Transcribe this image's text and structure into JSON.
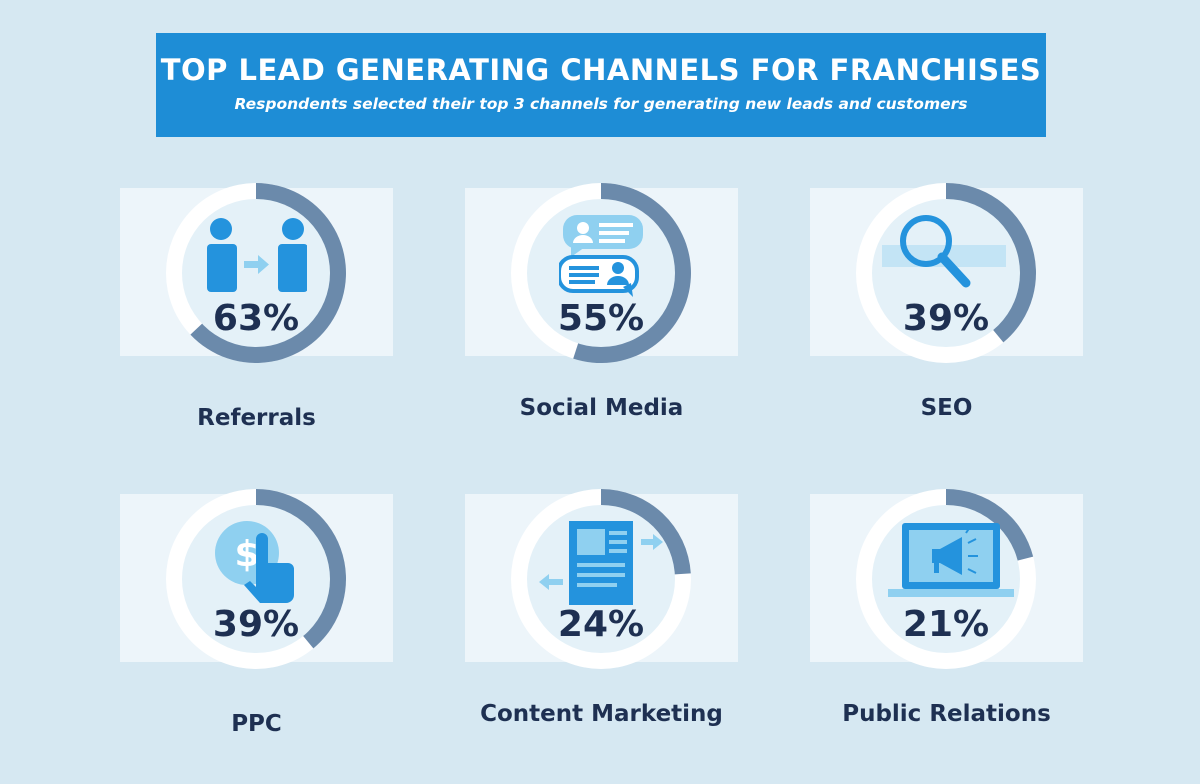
{
  "header": {
    "title": "TOP LEAD GENERATING CHANNELS FOR FRANCHISES",
    "subtitle": "Respondents selected their top 3 channels for generating new leads and customers"
  },
  "colors": {
    "background": "#d6e8f2",
    "banner": "#1e8dd6",
    "ring_track": "#ffffff",
    "ring_fill": "#6b8aab",
    "text_dark": "#1e3052",
    "icon_blue": "#2493dd",
    "icon_light": "#8fd0f0"
  },
  "chart_data": {
    "type": "donut-grid",
    "title": "TOP LEAD GENERATING CHANNELS FOR FRANCHISES",
    "subtitle": "Respondents selected their top 3 channels for generating new leads and customers",
    "items": [
      {
        "label": "Referrals",
        "value": 63,
        "value_text": "63%",
        "icon": "referral-people-icon"
      },
      {
        "label": "Social Media",
        "value": 55,
        "value_text": "55%",
        "icon": "chat-bubbles-icon"
      },
      {
        "label": "SEO",
        "value": 39,
        "value_text": "39%",
        "icon": "magnifier-icon"
      },
      {
        "label": "PPC",
        "value": 39,
        "value_text": "39%",
        "icon": "dollar-click-icon"
      },
      {
        "label": "Content Marketing",
        "value": 24,
        "value_text": "24%",
        "icon": "document-arrows-icon"
      },
      {
        "label": "Public Relations",
        "value": 21,
        "value_text": "21%",
        "icon": "laptop-megaphone-icon"
      }
    ]
  }
}
